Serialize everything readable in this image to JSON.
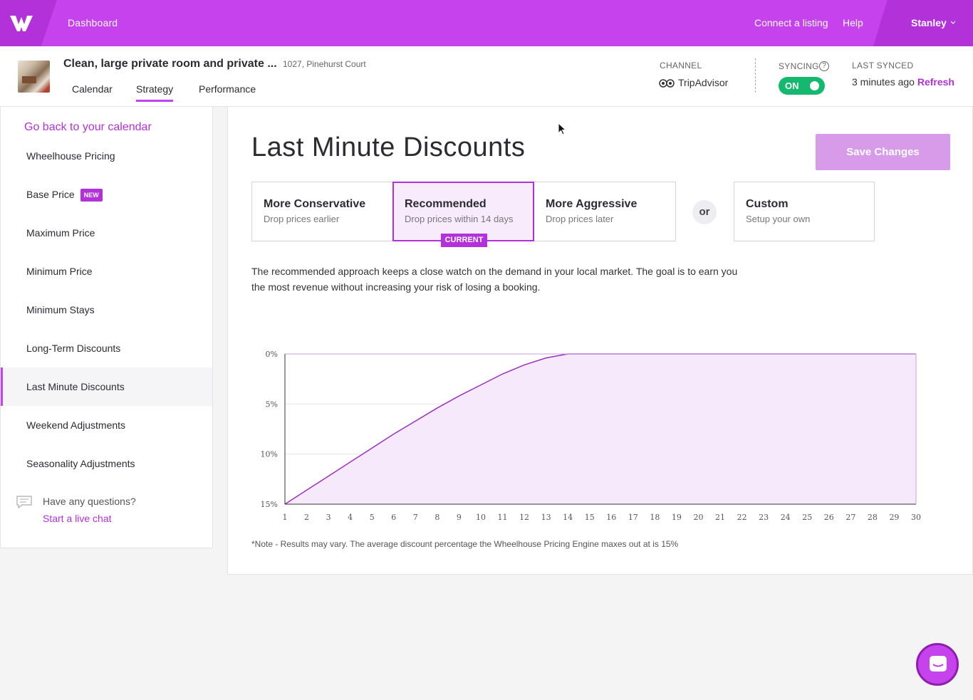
{
  "topbar": {
    "dashboard": "Dashboard",
    "connect": "Connect a listing",
    "help": "Help",
    "user": "Stanley"
  },
  "listing": {
    "title": "Clean, large private room and private ...",
    "address": "1027, Pinehurst Court",
    "tabs": [
      "Calendar",
      "Strategy",
      "Performance"
    ],
    "active_tab": "Strategy",
    "channel_label": "CHANNEL",
    "channel": "TripAdvisor",
    "syncing_label": "SYNCING",
    "sync_state": "ON",
    "last_synced_label": "LAST SYNCED",
    "last_synced": "3 minutes ago",
    "refresh": "Refresh"
  },
  "sidebar": {
    "back": "Go back to your calendar",
    "items": [
      {
        "label": "Wheelhouse Pricing"
      },
      {
        "label": "Base Price",
        "badge": "NEW"
      },
      {
        "label": "Maximum Price"
      },
      {
        "label": "Minimum Price"
      },
      {
        "label": "Minimum Stays"
      },
      {
        "label": "Long-Term Discounts"
      },
      {
        "label": "Last Minute Discounts",
        "active": true
      },
      {
        "label": "Weekend Adjustments"
      },
      {
        "label": "Seasonality Adjustments"
      }
    ],
    "questions": "Have any questions?",
    "live_chat": "Start a live chat"
  },
  "main": {
    "title": "Last Minute Discounts",
    "save": "Save Changes",
    "options": [
      {
        "title": "More Conservative",
        "sub": "Drop prices earlier"
      },
      {
        "title": "Recommended",
        "sub": "Drop prices within 14 days"
      },
      {
        "title": "More Aggressive",
        "sub": "Drop prices later"
      }
    ],
    "current_tag": "CURRENT",
    "or": "or",
    "custom": {
      "title": "Custom",
      "sub": "Setup your own"
    },
    "description": "The recommended approach keeps a close watch on the demand in your local market. The goal is to earn you the most revenue without increasing your risk of losing a booking.",
    "note": "*Note - Results may vary. The average discount percentage the Wheelhouse Pricing Engine maxes out at is 15%"
  },
  "colors": {
    "brand": "#c542ec",
    "brand_dark": "#b331db",
    "sync_on": "#14b86f",
    "curve": "#9b2fc0",
    "fill": "#f5e9fb"
  },
  "chart_data": {
    "type": "area",
    "x": [
      1,
      2,
      3,
      4,
      5,
      6,
      7,
      8,
      9,
      10,
      11,
      12,
      13,
      14,
      15,
      16,
      17,
      18,
      19,
      20,
      21,
      22,
      23,
      24,
      25,
      26,
      27,
      28,
      29,
      30
    ],
    "y": [
      15,
      13.6,
      12.2,
      10.8,
      9.4,
      8.0,
      6.7,
      5.4,
      4.2,
      3.1,
      2.0,
      1.1,
      0.4,
      0,
      0,
      0,
      0,
      0,
      0,
      0,
      0,
      0,
      0,
      0,
      0,
      0,
      0,
      0,
      0,
      0
    ],
    "yticks": [
      "0%",
      "5%",
      "10%",
      "15%"
    ],
    "ylim": [
      0,
      15
    ],
    "y_inverted": true,
    "grid": true
  }
}
